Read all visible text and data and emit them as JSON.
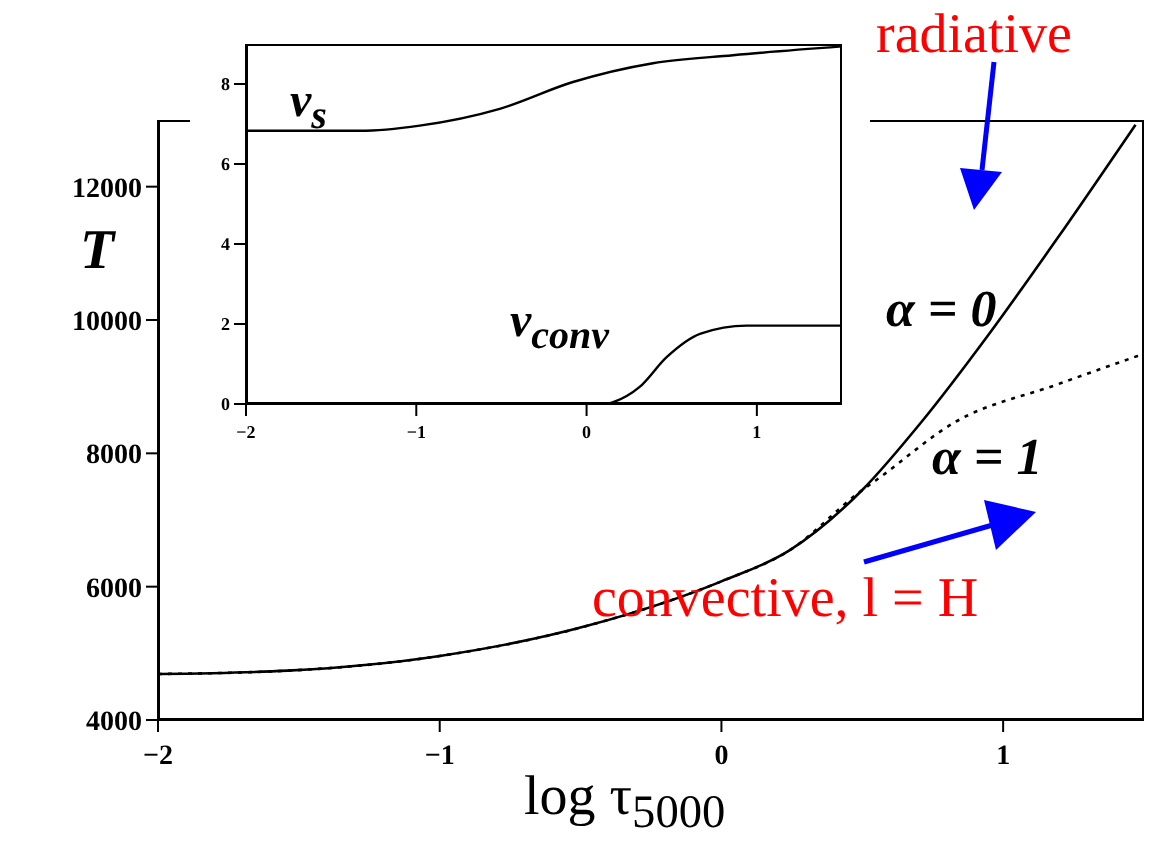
{
  "chart_data": [
    {
      "type": "line",
      "xlabel": "log τ$_{5000}$",
      "ylabel": "T",
      "xlim": [
        -2,
        1.5
      ],
      "xticks": [
        -2,
        -1,
        0,
        1
      ],
      "ylim": [
        4000,
        13000
      ],
      "yticks": [
        4000,
        6000,
        8000,
        10000,
        12000
      ],
      "grid": false,
      "legend": false,
      "marker": "none",
      "annotations": [
        "radiative",
        "convective, l = H"
      ],
      "series": [
        {
          "name": "α = 0",
          "color": "#000000",
          "line_style": "solid",
          "x": [
            -2,
            -1.54,
            -1,
            -0.47,
            0,
            0.24,
            0.5,
            0.71,
            0.95,
            1.19,
            1.47
          ],
          "values": [
            4690,
            4740,
            4960,
            5420,
            6080,
            6540,
            7450,
            8470,
            9790,
            11210,
            12930
          ]
        },
        {
          "name": "α = 1",
          "color": "#000000",
          "line_style": "dotted",
          "x": [
            -2,
            -1.54,
            -1,
            -0.47,
            0,
            0.24,
            0.5,
            0.55,
            0.83,
            1.19,
            1.49
          ],
          "values": [
            4690,
            4740,
            4960,
            5420,
            6080,
            6540,
            7450,
            7600,
            8470,
            9030,
            9480
          ]
        }
      ]
    },
    {
      "type": "line",
      "xlim": [
        -2,
        1.5
      ],
      "xticks": [
        -2,
        -1,
        0,
        1
      ],
      "ylim": [
        0,
        9
      ],
      "yticks": [
        0,
        2,
        4,
        6,
        8
      ],
      "grid": false,
      "legend": false,
      "marker": "none",
      "series": [
        {
          "name": "v$_{s}$",
          "color": "#000000",
          "line_style": "solid",
          "x": [
            -2,
            -1.33,
            -0.98,
            -0.51,
            -0.08,
            0.39,
            0.86,
            1.5
          ],
          "values": [
            6.83,
            6.83,
            6.96,
            7.38,
            8.05,
            8.52,
            8.72,
            8.94
          ]
        },
        {
          "name": "v$_{conv}$",
          "color": "#000000",
          "line_style": "solid",
          "x": [
            0.12,
            0.16,
            0.31,
            0.47,
            0.67,
            0.94,
            1.5
          ],
          "values": [
            0,
            0.05,
            0.42,
            1.17,
            1.76,
            1.96,
            1.96
          ]
        }
      ]
    }
  ]
}
